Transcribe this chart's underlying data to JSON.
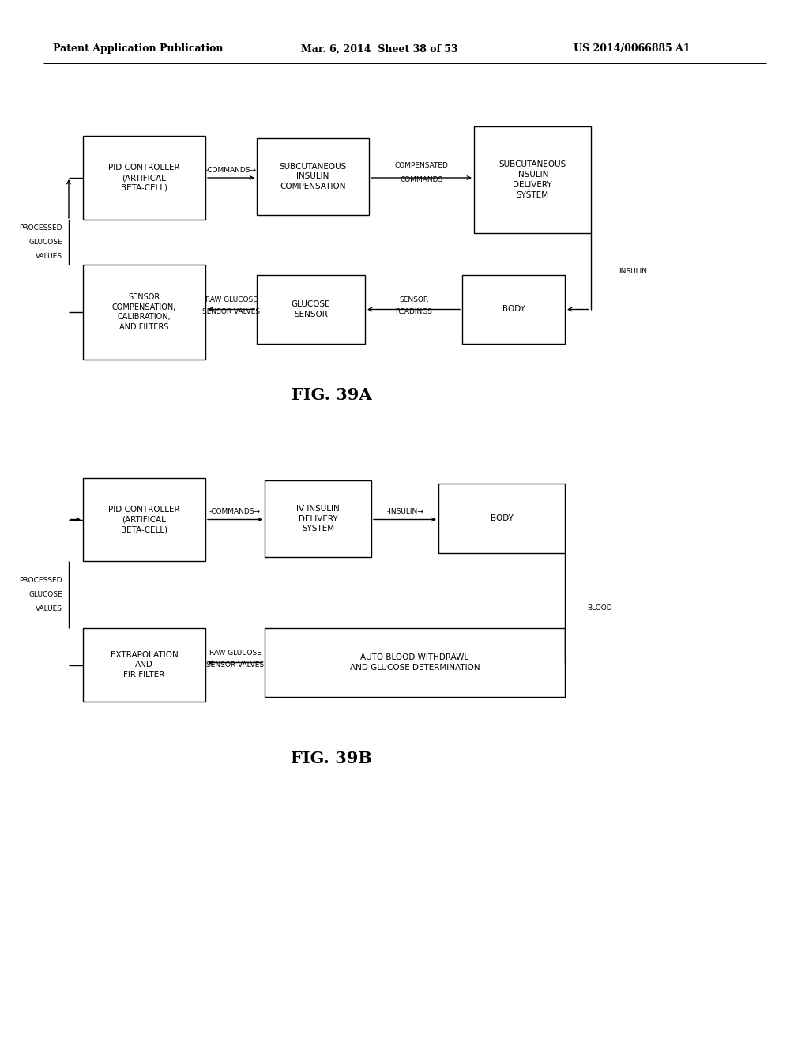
{
  "background_color": "#ffffff",
  "header_left": "Patent Application Publication",
  "header_mid": "Mar. 6, 2014  Sheet 38 of 53",
  "header_right": "US 2014/0066885 A1",
  "fig_label_a": "FIG. 39A",
  "fig_label_b": "FIG. 39B"
}
